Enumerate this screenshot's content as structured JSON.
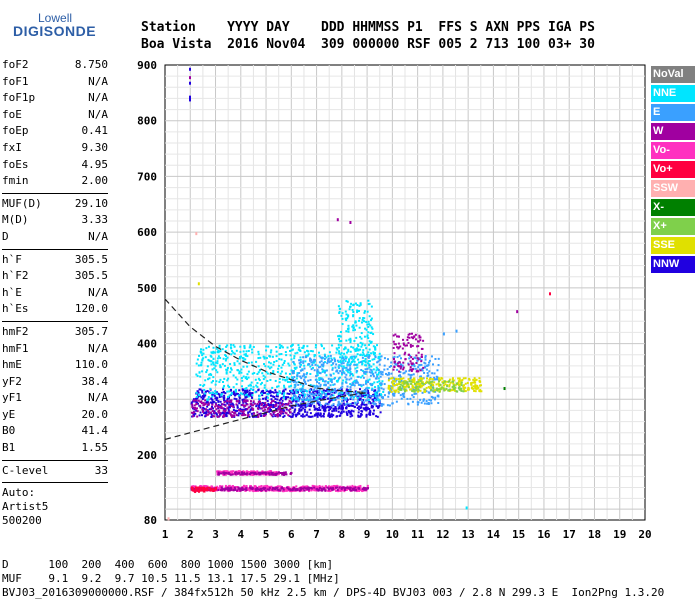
{
  "logo": {
    "line1": "Lowell",
    "line2": "DIGISONDE"
  },
  "header": {
    "line1": "Station    YYYY DAY    DDD HHMMSS P1  FFS S AXN PPS IGA PS",
    "line2": "Boa Vista  2016 Nov04  309 000000 RSF 005 2 713 100 03+ 30"
  },
  "params": {
    "group1": [
      {
        "k": "foF2",
        "v": "8.750"
      },
      {
        "k": "foF1",
        "v": "N/A"
      },
      {
        "k": "foF1p",
        "v": "N/A"
      },
      {
        "k": "foE",
        "v": "N/A"
      },
      {
        "k": "foEp",
        "v": "0.41"
      },
      {
        "k": "fxI",
        "v": "9.30"
      },
      {
        "k": "foEs",
        "v": "4.95"
      },
      {
        "k": "fmin",
        "v": "2.00"
      }
    ],
    "group2": [
      {
        "k": "MUF(D)",
        "v": "29.10"
      },
      {
        "k": "M(D)",
        "v": "3.33"
      },
      {
        "k": "D",
        "v": "N/A"
      }
    ],
    "group3": [
      {
        "k": "h`F",
        "v": "305.5"
      },
      {
        "k": "h`F2",
        "v": "305.5"
      },
      {
        "k": "h`E",
        "v": "N/A"
      },
      {
        "k": "h`Es",
        "v": "120.0"
      }
    ],
    "group4": [
      {
        "k": "hmF2",
        "v": "305.7"
      },
      {
        "k": "hmF1",
        "v": "N/A"
      },
      {
        "k": "hmE",
        "v": "110.0"
      },
      {
        "k": "yF2",
        "v": "38.4"
      },
      {
        "k": "yF1",
        "v": "N/A"
      },
      {
        "k": "yE",
        "v": "20.0"
      },
      {
        "k": "B0",
        "v": "41.4"
      },
      {
        "k": "B1",
        "v": "1.55"
      }
    ],
    "group5": [
      {
        "k": "C-level",
        "v": "33"
      }
    ],
    "auto": [
      "Auto:",
      "Artist5",
      "500200"
    ]
  },
  "legend": [
    {
      "label": "NoVal",
      "color": "#808080"
    },
    {
      "label": "NNE",
      "color": "#00e5ff"
    },
    {
      "label": "E",
      "color": "#3aa0ff"
    },
    {
      "label": "W",
      "color": "#a000a0"
    },
    {
      "label": "Vo-",
      "color": "#ff30c0"
    },
    {
      "label": "Vo+",
      "color": "#ff0040"
    },
    {
      "label": "SSW",
      "color": "#ffb0b0"
    },
    {
      "label": "X-",
      "color": "#008000"
    },
    {
      "label": "X+",
      "color": "#7fd04b"
    },
    {
      "label": "SSE",
      "color": "#e0e000"
    },
    {
      "label": "NNW",
      "color": "#2000e0"
    }
  ],
  "footer": {
    "line1": "D      100  200  400  600  800 1000 1500 3000 [km]",
    "line2": "MUF    9.1  9.2  9.7 10.5 11.5 13.1 17.5 29.1 [MHz]",
    "line3": "BVJ03_2016309000000.RSF / 384fx512h 50 kHz 2.5 km / DPS-4D BVJ03 003 / 2.8 N 299.3 E  Ion2Png 1.3.20"
  },
  "chart_data": {
    "type": "scatter",
    "x_ticks": [
      "1",
      "2",
      "3",
      "4",
      "5",
      "6",
      "7",
      "8",
      "9",
      "10",
      "11",
      "12",
      "13",
      "14",
      "15",
      "16",
      "17",
      "18",
      "19",
      "20"
    ],
    "y_ticks": [
      "80",
      "200",
      "300",
      "400",
      "500",
      "600",
      "700",
      "800",
      "900"
    ],
    "xlim": [
      1,
      20
    ],
    "ylim": [
      80,
      900
    ],
    "grid": true,
    "legend_position": "right",
    "clusters": [
      {
        "name": "NNW",
        "color": "#2000e0",
        "x": [
          2.0,
          9.5
        ],
        "y": [
          270,
          320
        ],
        "n": 900
      },
      {
        "name": "NNE",
        "color": "#00e5ff",
        "x": [
          2.2,
          9.6
        ],
        "y": [
          300,
          400
        ],
        "n": 700
      },
      {
        "name": "E",
        "color": "#3aa0ff",
        "x": [
          6.0,
          11.8
        ],
        "y": [
          290,
          380
        ],
        "n": 600
      },
      {
        "name": "NNE",
        "color": "#00e5ff",
        "x": [
          7.8,
          9.2
        ],
        "y": [
          360,
          480
        ],
        "n": 160
      },
      {
        "name": "W",
        "color": "#a000a0",
        "x": [
          2.0,
          6.0
        ],
        "y": [
          270,
          300
        ],
        "n": 200
      },
      {
        "name": "W",
        "color": "#a000a0",
        "x": [
          10.0,
          11.2
        ],
        "y": [
          350,
          420
        ],
        "n": 100
      },
      {
        "name": "SSE",
        "color": "#e0e000",
        "x": [
          9.8,
          13.5
        ],
        "y": [
          315,
          340
        ],
        "n": 260
      },
      {
        "name": "X+",
        "color": "#7fd04b",
        "x": [
          10.2,
          12.8
        ],
        "y": [
          315,
          335
        ],
        "n": 90
      },
      {
        "name": "Vo-",
        "color": "#ff30c0",
        "x": [
          3.0,
          5.5
        ],
        "y": [
          165,
          172
        ],
        "n": 150
      },
      {
        "name": "W",
        "color": "#a000a0",
        "x": [
          3.0,
          6.0
        ],
        "y": [
          165,
          170
        ],
        "n": 90
      },
      {
        "name": "Vo-",
        "color": "#ff30c0",
        "x": [
          2.0,
          9.0
        ],
        "y": [
          135,
          145
        ],
        "n": 500
      },
      {
        "name": "W",
        "color": "#a000a0",
        "x": [
          2.0,
          9.0
        ],
        "y": [
          136,
          142
        ],
        "n": 220
      },
      {
        "name": "Vo+",
        "color": "#ff0040",
        "x": [
          2.0,
          3.0
        ],
        "y": [
          133,
          142
        ],
        "n": 60
      }
    ],
    "points": [
      {
        "x": 1.95,
        "y": 895,
        "c": "#2000e0"
      },
      {
        "x": 1.95,
        "y": 880,
        "c": "#a000a0"
      },
      {
        "x": 1.95,
        "y": 870,
        "c": "#2000e0"
      },
      {
        "x": 1.95,
        "y": 845,
        "c": "#2000e0"
      },
      {
        "x": 1.95,
        "y": 840,
        "c": "#2000e0"
      },
      {
        "x": 2.2,
        "y": 600,
        "c": "#ffb0b0"
      },
      {
        "x": 7.8,
        "y": 625,
        "c": "#a000a0"
      },
      {
        "x": 8.3,
        "y": 620,
        "c": "#a000a0"
      },
      {
        "x": 12.0,
        "y": 420,
        "c": "#3aa0ff"
      },
      {
        "x": 12.5,
        "y": 425,
        "c": "#3aa0ff"
      },
      {
        "x": 14.9,
        "y": 460,
        "c": "#a000a0"
      },
      {
        "x": 16.2,
        "y": 492,
        "c": "#ff0040"
      },
      {
        "x": 14.4,
        "y": 322,
        "c": "#008000"
      },
      {
        "x": 12.9,
        "y": 105,
        "c": "#00e5ff"
      },
      {
        "x": 1.1,
        "y": 85,
        "c": "#ffb0b0"
      },
      {
        "x": 2.3,
        "y": 510,
        "c": "#e0e000"
      }
    ],
    "dashed_curve": [
      [
        1,
        480
      ],
      [
        1.5,
        455
      ],
      [
        2,
        430
      ],
      [
        3,
        395
      ],
      [
        4,
        370
      ],
      [
        5,
        350
      ],
      [
        6,
        335
      ],
      [
        7,
        320
      ],
      [
        8,
        315
      ],
      [
        9,
        312
      ]
    ],
    "dashed_curve_low": [
      [
        1,
        228
      ],
      [
        2,
        240
      ],
      [
        3,
        252
      ],
      [
        4,
        264
      ],
      [
        5,
        276
      ],
      [
        6,
        288
      ],
      [
        7,
        297
      ],
      [
        8,
        305
      ],
      [
        9,
        312
      ]
    ]
  }
}
